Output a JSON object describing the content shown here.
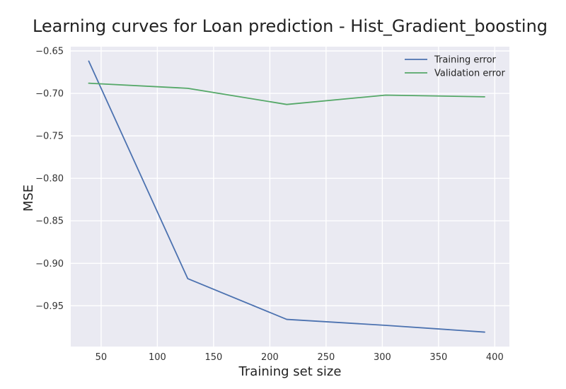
{
  "chart_data": {
    "type": "line",
    "title": "Learning curves for Loan prediction - Hist_Gradient_boosting",
    "xlabel": "Training set size",
    "ylabel": "MSE",
    "xlim": [
      23,
      413
    ],
    "ylim": [
      -0.998,
      -0.645
    ],
    "xticks": [
      50,
      100,
      150,
      200,
      250,
      300,
      350,
      400
    ],
    "xtick_labels": [
      "50",
      "100",
      "150",
      "200",
      "250",
      "300",
      "350",
      "400"
    ],
    "yticks": [
      -0.65,
      -0.7,
      -0.75,
      -0.8,
      -0.85,
      -0.9,
      -0.95
    ],
    "ytick_labels": [
      "−0.65",
      "−0.70",
      "−0.75",
      "−0.80",
      "−0.85",
      "−0.90",
      "−0.95"
    ],
    "grid": true,
    "legend_position": "top-right",
    "x": [
      39,
      127,
      215,
      303,
      391
    ],
    "series": [
      {
        "name": "Training error",
        "color": "#4c72b0",
        "values": [
          -0.662,
          -0.918,
          -0.966,
          -0.973,
          -0.981
        ]
      },
      {
        "name": "Validation error",
        "color": "#55a868",
        "values": [
          -0.688,
          -0.694,
          -0.713,
          -0.702,
          -0.704
        ]
      }
    ]
  },
  "style": {
    "background": "#eaeaf2",
    "grid_color": "#ffffff"
  }
}
